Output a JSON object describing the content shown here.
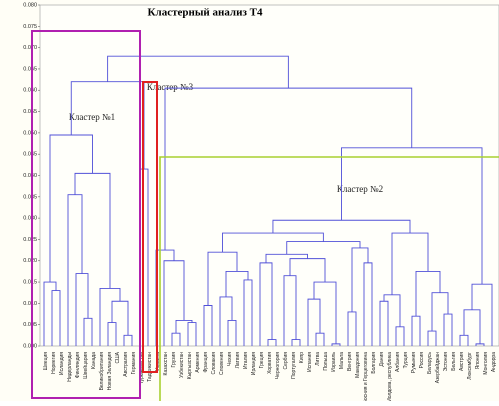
{
  "chart_data": {
    "type": "dendrogram",
    "title": "Кластерный анализ Т4",
    "color": "#5050d8",
    "ylim": [
      0,
      0.08
    ],
    "yticks": [
      {
        "value": 0,
        "label": "0.000"
      },
      {
        "value": 0.005,
        "label": "0.005"
      },
      {
        "value": 0.01,
        "label": "0.010"
      },
      {
        "value": 0.015,
        "label": "0.015"
      },
      {
        "value": 0.02,
        "label": "0.020"
      },
      {
        "value": 0.025,
        "label": "0.025"
      },
      {
        "value": 0.03,
        "label": "0.030"
      },
      {
        "value": 0.035,
        "label": "0.035"
      },
      {
        "value": 0.04,
        "label": "0.040"
      },
      {
        "value": 0.045,
        "label": "0.045"
      },
      {
        "value": 0.05,
        "label": "0.050"
      },
      {
        "value": 0.055,
        "label": "0.055"
      },
      {
        "value": 0.06,
        "label": "0.060"
      },
      {
        "value": 0.065,
        "label": "0.065"
      },
      {
        "value": 0.07,
        "label": "0.070"
      },
      {
        "value": 0.075,
        "label": "0.075"
      },
      {
        "value": 0.08,
        "label": "0.080"
      }
    ],
    "annotations": [
      "Кластер №1",
      "Кластер №3",
      "Кластер №2"
    ],
    "leaves": [
      "Швеция",
      "Норвегия",
      "Исландия",
      "Нидерланды",
      "Финляндия",
      "Швейцария",
      "Канада",
      "Великобритания",
      "Новая Зеландия",
      "США",
      "Австралия",
      "Германия",
      "Туркменистан",
      "Таджикистан",
      "Украина",
      "Казахстан",
      "Грузия",
      "Узбекистан",
      "Кыргызстан",
      "Армения",
      "Франция",
      "Словакия",
      "Словения",
      "Чехия",
      "Латвия",
      "Италия",
      "Ирландия",
      "Греция",
      "Хорватия",
      "Черногория",
      "Сербия",
      "Португалия",
      "Кипр",
      "Испания",
      "Литва",
      "Польша",
      "Израиль",
      "Мальта",
      "Венгрия",
      "Македония",
      "Босния и Герцеговина",
      "Болгария",
      "Дания",
      "Молдова, республика",
      "Албания",
      "Турция",
      "Румыния",
      "Россия",
      "Беларусь",
      "Азербайджан",
      "Эстония",
      "Бельгия",
      "Австрия",
      "Люксембург",
      "Япония",
      "Монголия",
      "Андорра"
    ],
    "merges": [
      {
        "left": 1,
        "right": 2,
        "height": 0.013
      },
      {
        "left": 0,
        "right": 57,
        "height": 0.015
      },
      {
        "left": 5,
        "right": 6,
        "height": 0.0065
      },
      {
        "left": 4,
        "right": 59,
        "height": 0.017
      },
      {
        "left": 3,
        "right": 60,
        "height": 0.0355
      },
      {
        "left": 10,
        "right": 11,
        "height": 0.0025
      },
      {
        "left": 8,
        "right": 9,
        "height": 0.0055
      },
      {
        "left": 63,
        "right": 62,
        "height": 0.0105
      },
      {
        "left": 7,
        "right": 64,
        "height": 0.0135
      },
      {
        "left": 61,
        "right": 65,
        "height": 0.0405
      },
      {
        "left": 58,
        "right": 66,
        "height": 0.0495
      },
      {
        "left": 12,
        "right": 13,
        "height": 0.0415
      },
      {
        "left": 67,
        "right": 68,
        "height": 0.062
      },
      {
        "left": 16,
        "right": 17,
        "height": 0.003
      },
      {
        "left": 18,
        "right": 19,
        "height": 0.0055
      },
      {
        "left": 70,
        "right": 71,
        "height": 0.006
      },
      {
        "left": 15,
        "right": 72,
        "height": 0.02
      },
      {
        "left": 14,
        "right": 73,
        "height": 0.0225
      },
      {
        "left": 20,
        "right": 21,
        "height": 0.0095
      },
      {
        "left": 23,
        "right": 24,
        "height": 0.006
      },
      {
        "left": 22,
        "right": 76,
        "height": 0.0115
      },
      {
        "left": 25,
        "right": 26,
        "height": 0.0155
      },
      {
        "left": 77,
        "right": 78,
        "height": 0.0175
      },
      {
        "left": 75,
        "right": 79,
        "height": 0.022
      },
      {
        "left": 28,
        "right": 29,
        "height": 0.0015
      },
      {
        "left": 27,
        "right": 81,
        "height": 0.0195
      },
      {
        "left": 31,
        "right": 32,
        "height": 0.0015
      },
      {
        "left": 30,
        "right": 83,
        "height": 0.0165
      },
      {
        "left": 34,
        "right": 35,
        "height": 0.003
      },
      {
        "left": 33,
        "right": 85,
        "height": 0.011
      },
      {
        "left": 36,
        "right": 37,
        "height": 0.0005
      },
      {
        "left": 86,
        "right": 87,
        "height": 0.015
      },
      {
        "left": 84,
        "right": 88,
        "height": 0.0205
      },
      {
        "left": 82,
        "right": 89,
        "height": 0.0215
      },
      {
        "left": 38,
        "right": 39,
        "height": 0.008
      },
      {
        "left": 40,
        "right": 41,
        "height": 0.0195
      },
      {
        "left": 91,
        "right": 92,
        "height": 0.023
      },
      {
        "left": 90,
        "right": 93,
        "height": 0.0245
      },
      {
        "left": 80,
        "right": 94,
        "height": 0.0265
      },
      {
        "left": 42,
        "right": 43,
        "height": 0.0105
      },
      {
        "left": 44,
        "right": 45,
        "height": 0.0045
      },
      {
        "left": 96,
        "right": 97,
        "height": 0.012
      },
      {
        "left": 46,
        "right": 47,
        "height": 0.007
      },
      {
        "left": 48,
        "right": 49,
        "height": 0.0035
      },
      {
        "left": 50,
        "right": 51,
        "height": 0.0075
      },
      {
        "left": 100,
        "right": 101,
        "height": 0.0125
      },
      {
        "left": 99,
        "right": 102,
        "height": 0.0175
      },
      {
        "left": 98,
        "right": 103,
        "height": 0.0265
      },
      {
        "left": 95,
        "right": 104,
        "height": 0.0295
      },
      {
        "left": 52,
        "right": 53,
        "height": 0.0025
      },
      {
        "left": 54,
        "right": 55,
        "height": 0.0005
      },
      {
        "left": 106,
        "right": 107,
        "height": 0.0085
      },
      {
        "left": 108,
        "right": 56,
        "height": 0.0145
      },
      {
        "left": 105,
        "right": 109,
        "height": 0.0465
      },
      {
        "left": 74,
        "right": 110,
        "height": 0.0605
      },
      {
        "left": 69,
        "right": 111,
        "height": 0.068
      }
    ]
  }
}
